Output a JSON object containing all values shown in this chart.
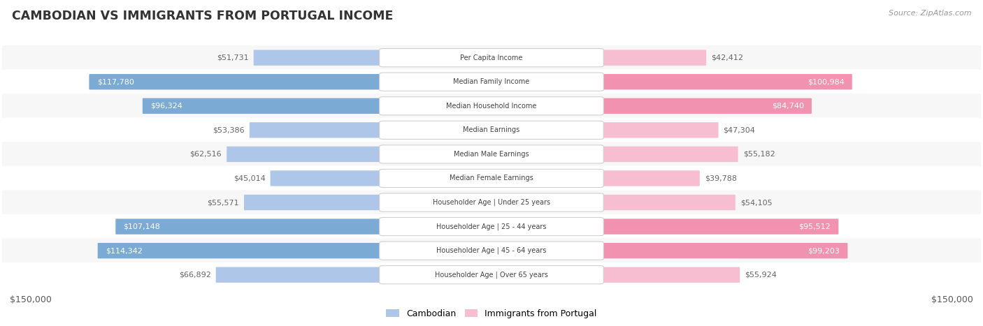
{
  "title": "CAMBODIAN VS IMMIGRANTS FROM PORTUGAL INCOME",
  "source": "Source: ZipAtlas.com",
  "categories": [
    "Per Capita Income",
    "Median Family Income",
    "Median Household Income",
    "Median Earnings",
    "Median Male Earnings",
    "Median Female Earnings",
    "Householder Age | Under 25 years",
    "Householder Age | 25 - 44 years",
    "Householder Age | 45 - 64 years",
    "Householder Age | Over 65 years"
  ],
  "cambodian_values": [
    51731,
    117780,
    96324,
    53386,
    62516,
    45014,
    55571,
    107148,
    114342,
    66892
  ],
  "portugal_values": [
    42412,
    100984,
    84740,
    47304,
    55182,
    39788,
    54105,
    95512,
    99203,
    55924
  ],
  "max_value": 150000,
  "cambodian_color_light": "#aec6e8",
  "cambodian_color_dark": "#7baad4",
  "portugal_color_light": "#f7bdd0",
  "portugal_color_dark": "#f092b0",
  "row_bg_odd": "#f7f7f7",
  "row_bg_even": "#ffffff",
  "label_bg_color": "#ffffff",
  "label_border_color": "#d0d0d0",
  "title_color": "#333333",
  "value_color_inside": "#ffffff",
  "value_color_outside": "#666666",
  "threshold": 75000,
  "xlabel_left": "$150,000",
  "xlabel_right": "$150,000",
  "legend_cambodian": "Cambodian",
  "legend_portugal": "Immigrants from Portugal",
  "figsize": [
    14.06,
    4.67
  ],
  "dpi": 100
}
